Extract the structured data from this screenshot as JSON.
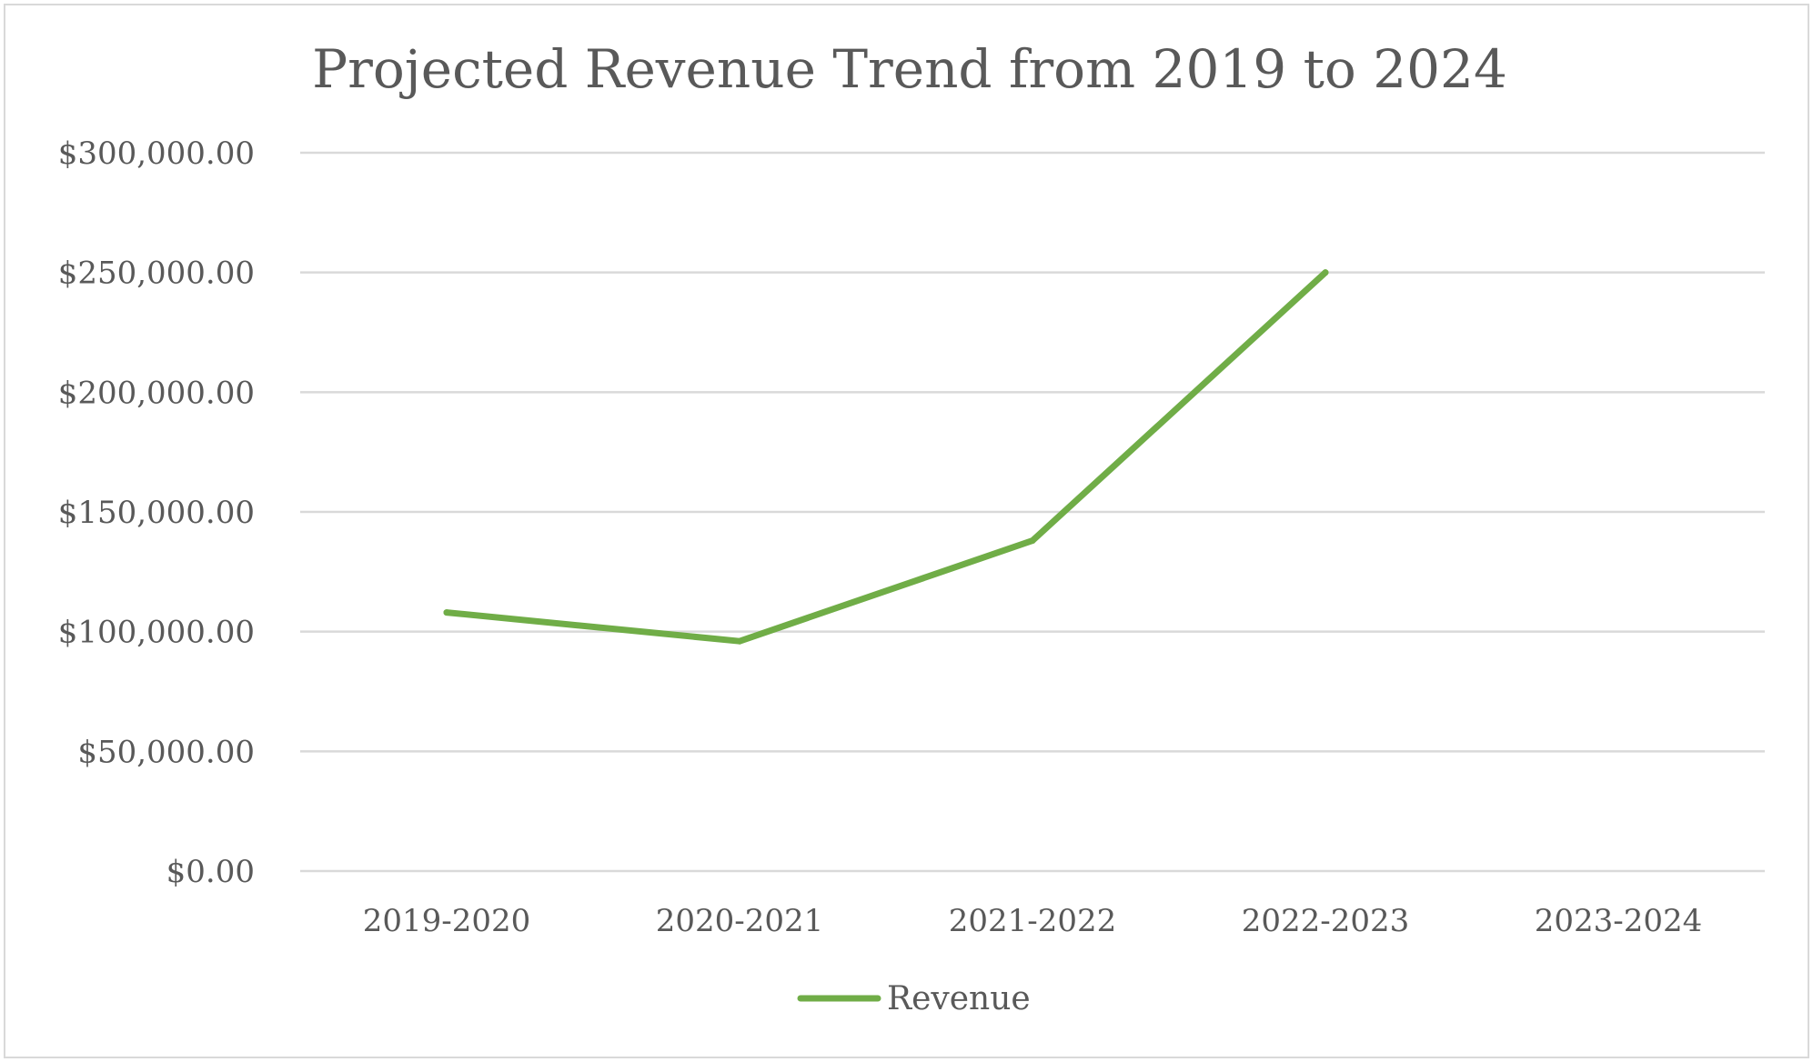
{
  "chart_data": {
    "type": "line",
    "title": "Projected Revenue Trend from 2019 to 2024",
    "xlabel": "",
    "ylabel": "",
    "categories": [
      "2019-2020",
      "2020-2021",
      "2021-2022",
      "2022-2023",
      "2023-2024"
    ],
    "series": [
      {
        "name": "Revenue",
        "values": [
          108000,
          96000,
          138000,
          250000,
          null
        ],
        "color": "#70ad47"
      }
    ],
    "ylim": [
      0,
      300000
    ],
    "yticks": [
      0,
      50000,
      100000,
      150000,
      200000,
      250000,
      300000
    ],
    "ytick_labels": [
      "$0.00",
      "$50,000.00",
      "$100,000.00",
      "$150,000.00",
      "$200,000.00",
      "$250,000.00",
      "$300,000.00"
    ],
    "grid": "horizontal",
    "legend_position": "bottom"
  }
}
